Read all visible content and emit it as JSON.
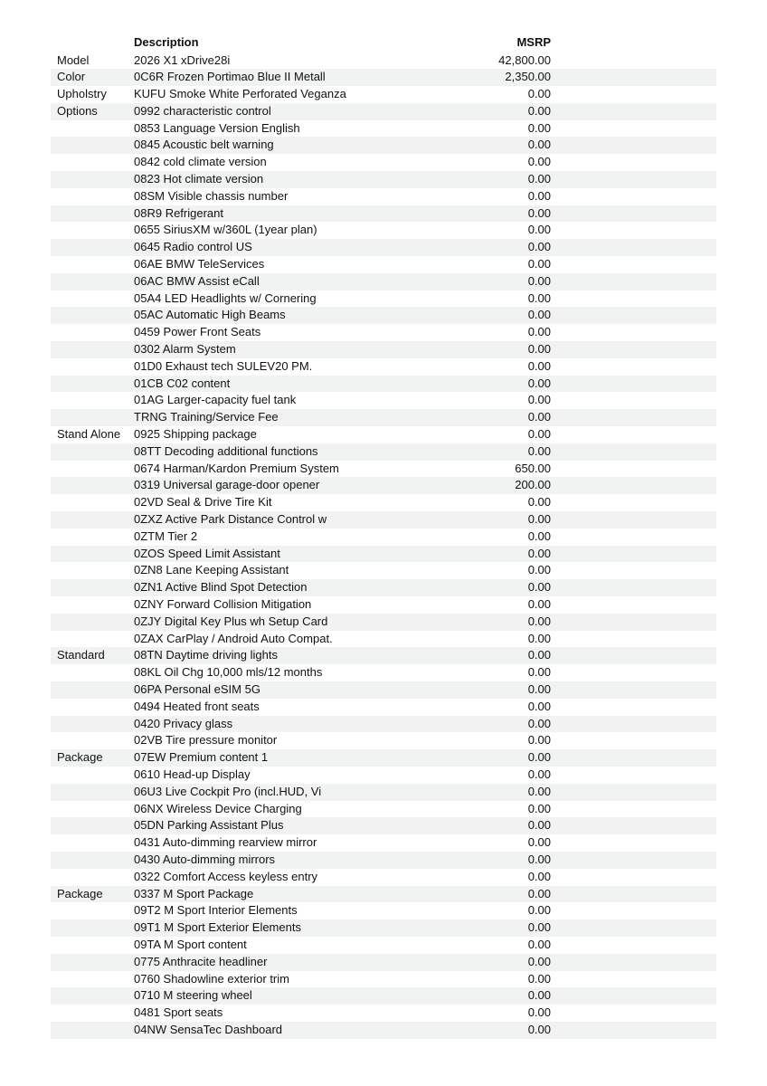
{
  "header": {
    "description": "Description",
    "msrp": "MSRP"
  },
  "rows": [
    {
      "category": "Model",
      "description": "2026 X1 xDrive28i",
      "msrp": "42,800.00"
    },
    {
      "category": "Color",
      "description": "0C6R Frozen Portimao Blue II Metall",
      "msrp": "2,350.00"
    },
    {
      "category": "Upholstry",
      "description": "KUFU Smoke White Perforated Veganza",
      "msrp": "0.00"
    },
    {
      "category": "Options",
      "description": "0992 characteristic control",
      "msrp": "0.00"
    },
    {
      "category": "",
      "description": "0853 Language Version English",
      "msrp": "0.00"
    },
    {
      "category": "",
      "description": "0845 Acoustic belt warning",
      "msrp": "0.00"
    },
    {
      "category": "",
      "description": "0842 cold climate version",
      "msrp": "0.00"
    },
    {
      "category": "",
      "description": "0823 Hot climate version",
      "msrp": "0.00"
    },
    {
      "category": "",
      "description": "08SM Visible chassis number",
      "msrp": "0.00"
    },
    {
      "category": "",
      "description": "08R9 Refrigerant",
      "msrp": "0.00"
    },
    {
      "category": "",
      "description": "0655 SiriusXM w/360L (1year plan)",
      "msrp": "0.00"
    },
    {
      "category": "",
      "description": "0645 Radio control US",
      "msrp": "0.00"
    },
    {
      "category": "",
      "description": "06AE BMW TeleServices",
      "msrp": "0.00"
    },
    {
      "category": "",
      "description": "06AC BMW Assist eCall",
      "msrp": "0.00"
    },
    {
      "category": "",
      "description": "05A4 LED Headlights w/ Cornering",
      "msrp": "0.00"
    },
    {
      "category": "",
      "description": "05AC Automatic High Beams",
      "msrp": "0.00"
    },
    {
      "category": "",
      "description": "0459 Power Front Seats",
      "msrp": "0.00"
    },
    {
      "category": "",
      "description": "0302 Alarm System",
      "msrp": "0.00"
    },
    {
      "category": "",
      "description": "01D0 Exhaust tech SULEV20 PM.",
      "msrp": "0.00"
    },
    {
      "category": "",
      "description": "01CB C02 content",
      "msrp": "0.00"
    },
    {
      "category": "",
      "description": "01AG Larger-capacity fuel tank",
      "msrp": "0.00"
    },
    {
      "category": "",
      "description": "TRNG Training/Service Fee",
      "msrp": "0.00"
    },
    {
      "category": "Stand Alone",
      "description": "0925 Shipping package",
      "msrp": "0.00"
    },
    {
      "category": "",
      "description": "08TT Decoding additional functions",
      "msrp": "0.00"
    },
    {
      "category": "",
      "description": "0674 Harman/Kardon Premium System",
      "msrp": "650.00"
    },
    {
      "category": "",
      "description": "0319 Universal garage-door opener",
      "msrp": "200.00"
    },
    {
      "category": "",
      "description": "02VD Seal & Drive Tire Kit",
      "msrp": "0.00"
    },
    {
      "category": "",
      "description": "0ZXZ Active Park Distance Control w",
      "msrp": "0.00"
    },
    {
      "category": "",
      "description": "0ZTM Tier 2",
      "msrp": "0.00"
    },
    {
      "category": "",
      "description": "0ZOS Speed Limit Assistant",
      "msrp": "0.00"
    },
    {
      "category": "",
      "description": "0ZN8 Lane Keeping Assistant",
      "msrp": "0.00"
    },
    {
      "category": "",
      "description": "0ZN1 Active Blind Spot Detection",
      "msrp": "0.00"
    },
    {
      "category": "",
      "description": "0ZNY Forward Collision Mitigation",
      "msrp": "0.00"
    },
    {
      "category": "",
      "description": "0ZJY Digital Key Plus wh Setup Card",
      "msrp": "0.00"
    },
    {
      "category": "",
      "description": "0ZAX CarPlay / Android Auto Compat.",
      "msrp": "0.00"
    },
    {
      "category": "Standard",
      "description": "08TN Daytime driving lights",
      "msrp": "0.00"
    },
    {
      "category": "",
      "description": "08KL Oil Chg 10,000 mls/12 months",
      "msrp": "0.00"
    },
    {
      "category": "",
      "description": "06PA Personal eSIM 5G",
      "msrp": "0.00"
    },
    {
      "category": "",
      "description": "0494 Heated front seats",
      "msrp": "0.00"
    },
    {
      "category": "",
      "description": "0420 Privacy glass",
      "msrp": "0.00"
    },
    {
      "category": "",
      "description": "02VB Tire pressure monitor",
      "msrp": "0.00"
    },
    {
      "category": "Package",
      "description": "07EW Premium content 1",
      "msrp": "0.00"
    },
    {
      "category": "",
      "description": "0610 Head-up Display",
      "msrp": "0.00"
    },
    {
      "category": "",
      "description": "06U3 Live Cockpit Pro (incl.HUD, Vi",
      "msrp": "0.00"
    },
    {
      "category": "",
      "description": "06NX Wireless Device Charging",
      "msrp": "0.00"
    },
    {
      "category": "",
      "description": "05DN Parking Assistant Plus",
      "msrp": "0.00"
    },
    {
      "category": "",
      "description": "0431 Auto-dimming rearview mirror",
      "msrp": "0.00"
    },
    {
      "category": "",
      "description": "0430 Auto-dimming mirrors",
      "msrp": "0.00"
    },
    {
      "category": "",
      "description": "0322 Comfort Access keyless entry",
      "msrp": "0.00"
    },
    {
      "category": "Package",
      "description": "0337 M Sport Package",
      "msrp": "0.00"
    },
    {
      "category": "",
      "description": "09T2 M Sport Interior Elements",
      "msrp": "0.00"
    },
    {
      "category": "",
      "description": "09T1 M Sport Exterior Elements",
      "msrp": "0.00"
    },
    {
      "category": "",
      "description": "09TA M Sport content",
      "msrp": "0.00"
    },
    {
      "category": "",
      "description": "0775 Anthracite headliner",
      "msrp": "0.00"
    },
    {
      "category": "",
      "description": "0760 Shadowline exterior trim",
      "msrp": "0.00"
    },
    {
      "category": "",
      "description": "0710 M steering wheel",
      "msrp": "0.00"
    },
    {
      "category": "",
      "description": "0481 Sport seats",
      "msrp": "0.00"
    },
    {
      "category": "",
      "description": "04NW SensaTec Dashboard",
      "msrp": "0.00"
    }
  ]
}
